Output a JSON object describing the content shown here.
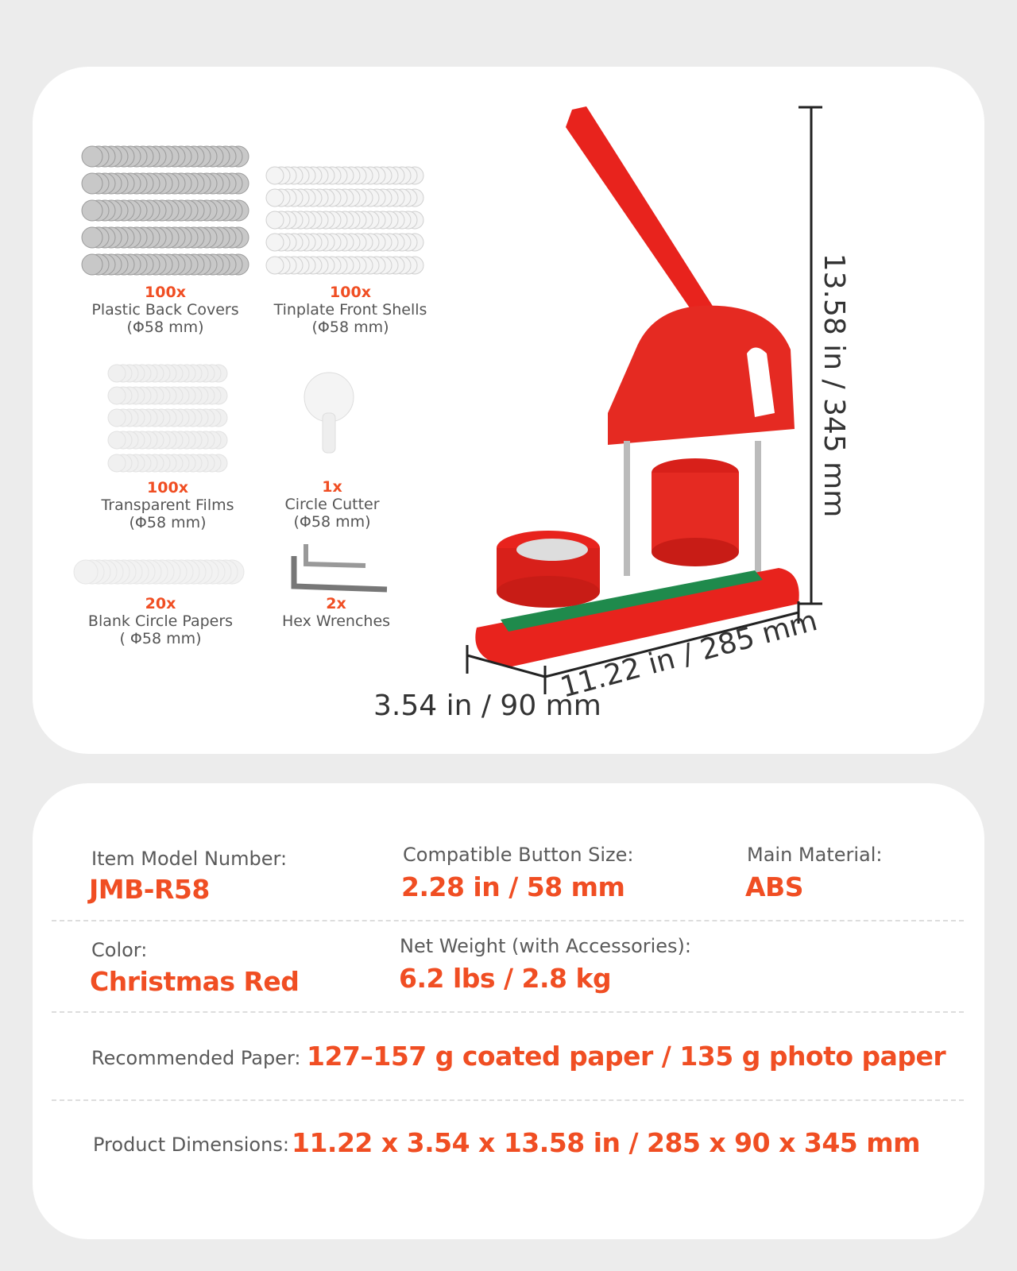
{
  "accessories": [
    {
      "quantity": "100x",
      "name": "Plastic Back Covers",
      "size": "(Φ58 mm)"
    },
    {
      "quantity": "100x",
      "name": "Tinplate Front Shells",
      "size": "(Φ58 mm)"
    },
    {
      "quantity": "100x",
      "name": "Transparent Films",
      "size": "(Φ58 mm)"
    },
    {
      "quantity": "1x",
      "name": "Circle Cutter",
      "size": "(Φ58 mm)"
    },
    {
      "quantity": "20x",
      "name": "Blank Circle Papers",
      "size": "( Φ58 mm)"
    },
    {
      "quantity": "2x",
      "name": "Hex Wrenches"
    }
  ],
  "dimensions": {
    "height": "13.58 in / 345 mm",
    "length": "11.22 in / 285 mm",
    "width": "3.54 in / 90 mm"
  },
  "specs": [
    {
      "label": "Item Model Number:",
      "value": "JMB-R58"
    },
    {
      "label": "Compatible Button Size:",
      "value": "2.28 in / 58 mm"
    },
    {
      "label": "Main Material:",
      "value": "ABS"
    },
    {
      "label": "Color:",
      "value": "Christmas Red"
    },
    {
      "label": "Net Weight (with Accessories):",
      "value": "6.2 lbs / 2.8 kg"
    },
    {
      "label": "Recommended Paper:",
      "value": "127–157 g coated paper / 135 g photo paper"
    },
    {
      "label": "Product Dimensions:",
      "value": "11.22 x 3.54 x 13.58 in / 285 x 90 x 345 mm"
    }
  ]
}
